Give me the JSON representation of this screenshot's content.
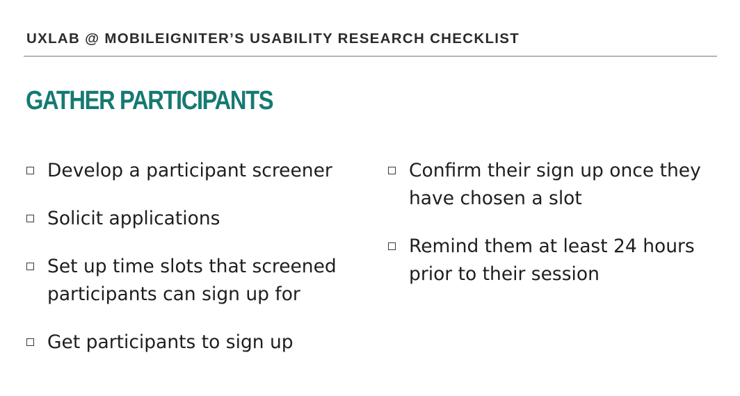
{
  "slide": {
    "header": "UXLAB @ MOBILEIGNITER’S USABILITY RESEARCH CHECKLIST",
    "title": "GATHER PARTICIPANTS",
    "left_items": [
      "Develop a participant screener",
      "Solicit applications",
      "Set up time slots that screened participants can sign up for",
      "Get participants to sign up"
    ],
    "right_items": [
      "Confirm their sign up once they have chosen a slot",
      "Remind them at least 24 hours prior to their session"
    ],
    "colors": {
      "title": "#157a72",
      "text": "#1e1e1e",
      "rule": "#b5b5b5"
    }
  }
}
